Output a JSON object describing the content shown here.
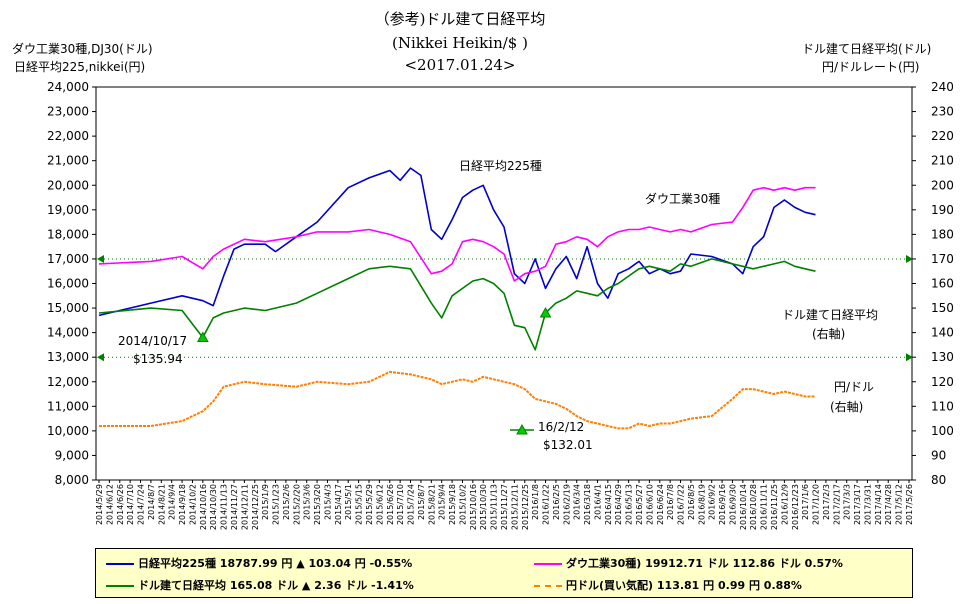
{
  "header": {
    "title_line1": "（参考)ドル建て日経平均",
    "title_line2": "(Nikkei Heikin/$ )",
    "title_line3": "<2017.01.24>",
    "left_axis_line1": "ダウ工業30種,DJ30(ドル)",
    "left_axis_line2": "日経平均225,nikkei(円)",
    "right_axis_line1": "ドル建て日経平均(ドル)",
    "right_axis_line2": "円/ドルレート(円)"
  },
  "annotations": {
    "nikkei": "日経平均225種",
    "dow": "ダウ工業30種",
    "dollar_nikkei_1": "ドル建て日経平均",
    "dollar_nikkei_2": "(右軸)",
    "yen_1": "円/ドル",
    "yen_2": "(右軸)",
    "low1_date": "2014/10/17",
    "low1_value": "$135.94",
    "low2_date": "16/2/12",
    "low2_value": "$132.01"
  },
  "legend": {
    "nikkei": "日経平均225種 18787.99 円 ▲ 103.04 円 -0.55%",
    "dow": "ダウ工業30種) 19912.71 ドル 112.86 ドル 0.57%",
    "dollar_nikkei": "ドル建て日経平均 165.08 ドル ▲ 2.36 ドル -1.41%",
    "yen": "円ドル(買い気配) 113.81 円 0.99 円 0.88%"
  },
  "colors": {
    "nikkei": "#0000cc",
    "dow": "#ff00ff",
    "dollar_nikkei": "#008000",
    "yen": "#ff8000",
    "reference_lines": "#008000",
    "marker": "#00cc00"
  },
  "chart_data": {
    "type": "line",
    "title": "（参考)ドル建て日経平均 (Nikkei Heikin/$ ) <2017.01.24>",
    "left_ylim": [
      8000,
      24000
    ],
    "right_ylim": [
      80,
      240
    ],
    "left_ticks": [
      "8,000",
      "9,000",
      "10,000",
      "11,000",
      "12,000",
      "13,000",
      "14,000",
      "15,000",
      "16,000",
      "17,000",
      "18,000",
      "19,000",
      "20,000",
      "21,000",
      "22,000",
      "23,000",
      "24,000"
    ],
    "right_ticks": [
      "80",
      "90",
      "100",
      "110",
      "120",
      "130",
      "140",
      "150",
      "160",
      "170",
      "180",
      "190",
      "200",
      "210",
      "220",
      "230",
      "240"
    ],
    "x_ticks": [
      "2014/5/29",
      "2014/6/12",
      "2014/6/26",
      "2014/7/10",
      "2014/7/24",
      "2014/8/7",
      "2014/8/21",
      "2014/9/4",
      "2014/9/18",
      "2014/10/2",
      "2014/10/16",
      "2014/10/30",
      "2014/11/13",
      "2014/11/27",
      "2014/12/11",
      "2014/12/25",
      "2015/1/9",
      "2015/1/23",
      "2015/2/6",
      "2015/2/20",
      "2015/3/6",
      "2015/3/20",
      "2015/4/3",
      "2015/4/17",
      "2015/5/1",
      "2015/5/15",
      "2015/5/29",
      "2015/6/12",
      "2015/6/26",
      "2015/7/10",
      "2015/7/24",
      "2015/8/7",
      "2015/8/21",
      "2015/9/4",
      "2015/9/18",
      "2015/10/2",
      "2015/10/16",
      "2015/10/30",
      "2015/11/13",
      "2015/11/27",
      "2015/12/11",
      "2015/12/25",
      "2016/1/8",
      "2016/1/22",
      "2016/2/5",
      "2016/2/19",
      "2016/3/4",
      "2016/3/18",
      "2016/4/1",
      "2016/4/15",
      "2016/4/29",
      "2016/5/13",
      "2016/5/27",
      "2016/6/10",
      "2016/6/24",
      "2016/7/8",
      "2016/7/22",
      "2016/8/5",
      "2016/8/19",
      "2016/9/2",
      "2016/9/16",
      "2016/9/30",
      "2016/10/14",
      "2016/10/28",
      "2016/11/11",
      "2016/11/25",
      "2016/12/9",
      "2016/12/23",
      "2017/1/6",
      "2017/1/20",
      "2017/2/3",
      "2017/2/17",
      "2017/3/3",
      "2017/3/17",
      "2017/3/31",
      "2017/4/14",
      "2017/4/28",
      "2017/5/12",
      "2017/5/26"
    ],
    "reference_lines_right": [
      170,
      130
    ],
    "series": [
      {
        "name": "日経平均225種",
        "axis": "left",
        "x_index": [
          0,
          5,
          8,
          10,
          11,
          12,
          13,
          14,
          16,
          17,
          19,
          21,
          24,
          26,
          28,
          29,
          30,
          31,
          32,
          33,
          34,
          35,
          36,
          37,
          38,
          39,
          40,
          41,
          42,
          43,
          44,
          45,
          46,
          47,
          48,
          49,
          50,
          51,
          52,
          53,
          54,
          55,
          56,
          57,
          59,
          61,
          62,
          63,
          64,
          65,
          66,
          67,
          68,
          69
        ],
        "values": [
          14700,
          15200,
          15500,
          15300,
          15100,
          16300,
          17400,
          17600,
          17600,
          17300,
          17900,
          18500,
          19900,
          20300,
          20600,
          20200,
          20700,
          20400,
          18200,
          17800,
          18600,
          19500,
          19800,
          20000,
          19000,
          18300,
          16400,
          16000,
          17000,
          15800,
          16600,
          17100,
          16200,
          17500,
          16000,
          15400,
          16400,
          16600,
          16900,
          16400,
          16600,
          16400,
          16500,
          17200,
          17100,
          16800,
          16400,
          17500,
          17900,
          19100,
          19400,
          19100,
          18900,
          18800
        ]
      },
      {
        "name": "ダウ工業30種",
        "axis": "left",
        "x_index": [
          0,
          5,
          8,
          10,
          11,
          12,
          14,
          16,
          19,
          21,
          24,
          26,
          28,
          30,
          32,
          33,
          34,
          35,
          36,
          37,
          38,
          39,
          40,
          41,
          42,
          43,
          44,
          45,
          46,
          47,
          48,
          49,
          50,
          51,
          52,
          53,
          54,
          55,
          56,
          57,
          59,
          61,
          62,
          63,
          64,
          65,
          66,
          67,
          68,
          69
        ],
        "values": [
          16800,
          16900,
          17100,
          16600,
          17100,
          17400,
          17800,
          17700,
          17900,
          18100,
          18100,
          18200,
          18000,
          17700,
          16400,
          16500,
          16800,
          17700,
          17800,
          17700,
          17500,
          17200,
          16100,
          16400,
          16500,
          16700,
          17600,
          17700,
          17900,
          17800,
          17500,
          17900,
          18100,
          18200,
          18200,
          18300,
          18200,
          18100,
          18200,
          18100,
          18400,
          18500,
          19100,
          19800,
          19900,
          19800,
          19900,
          19800,
          19900,
          19900
        ]
      },
      {
        "name": "ドル建て日経平均",
        "axis": "right",
        "x_index": [
          0,
          5,
          8,
          10,
          11,
          12,
          14,
          16,
          19,
          21,
          24,
          26,
          28,
          30,
          32,
          33,
          34,
          35,
          36,
          37,
          38,
          39,
          40,
          41,
          42,
          43,
          44,
          45,
          46,
          47,
          48,
          49,
          50,
          51,
          52,
          53,
          54,
          55,
          56,
          57,
          59,
          61,
          62,
          63,
          64,
          65,
          66,
          67,
          68,
          69
        ],
        "values": [
          148,
          150,
          149,
          138,
          146,
          148,
          150,
          149,
          152,
          156,
          162,
          166,
          167,
          166,
          152,
          146,
          155,
          158,
          161,
          162,
          160,
          156,
          143,
          142,
          133,
          148,
          152,
          154,
          157,
          156,
          155,
          158,
          160,
          163,
          166,
          167,
          166,
          165,
          168,
          167,
          170,
          168,
          167,
          166,
          167,
          168,
          169,
          167,
          166,
          165
        ]
      },
      {
        "name": "円/ドル",
        "axis": "right",
        "x_index": [
          0,
          5,
          8,
          10,
          11,
          12,
          14,
          16,
          19,
          21,
          24,
          26,
          28,
          30,
          32,
          33,
          34,
          35,
          36,
          37,
          38,
          39,
          40,
          41,
          42,
          43,
          44,
          45,
          46,
          47,
          48,
          49,
          50,
          51,
          52,
          53,
          54,
          55,
          56,
          57,
          59,
          61,
          62,
          63,
          64,
          65,
          66,
          67,
          68,
          69
        ],
        "values": [
          102,
          102,
          104,
          108,
          112,
          118,
          120,
          119,
          118,
          120,
          119,
          120,
          124,
          123,
          121,
          119,
          120,
          121,
          120,
          122,
          121,
          120,
          119,
          117,
          113,
          112,
          111,
          109,
          106,
          104,
          103,
          102,
          101,
          101,
          103,
          102,
          103,
          103,
          104,
          105,
          106,
          113,
          117,
          117,
          116,
          115,
          116,
          115,
          114,
          114
        ]
      }
    ]
  }
}
